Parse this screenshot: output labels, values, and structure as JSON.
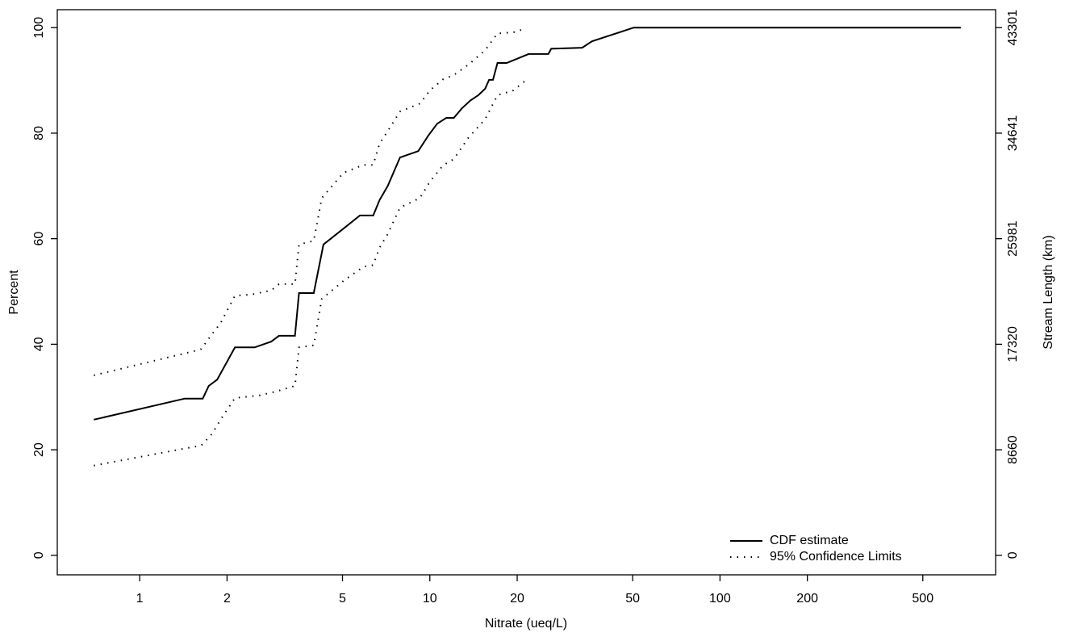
{
  "chart_data": {
    "type": "line",
    "xlabel": "Nitrate (ueq/L)",
    "ylabel": "Percent",
    "y2label": "Stream Length (km)",
    "xscale": "log",
    "xlim": [
      0.52,
      891
    ],
    "xticks": [
      1,
      2,
      5,
      10,
      20,
      50,
      100,
      200,
      500
    ],
    "ylim": [
      -3.7,
      103.4
    ],
    "yticks": [
      0,
      20,
      40,
      60,
      80,
      100
    ],
    "y2lim": [
      -1602,
      44773
    ],
    "y2ticks": [
      0,
      8660,
      17320,
      25981,
      34641,
      43301
    ],
    "legend": "bottom-right",
    "series": [
      {
        "name": "CDF estimate",
        "color": "#000000",
        "style": "solid",
        "x": [
          0.695,
          1.43,
          1.65,
          1.73,
          1.85,
          2.13,
          2.49,
          2.84,
          3.02,
          3.43,
          3.54,
          3.98,
          4.3,
          5.04,
          5.74,
          6.38,
          6.71,
          7.16,
          7.89,
          9.12,
          9.87,
          10.6,
          11.4,
          12.1,
          12.9,
          13.8,
          14.7,
          15.5,
          16.0,
          16.5,
          17.1,
          18.4,
          21.9,
          25.6,
          26.2,
          33.5,
          36.2,
          50.4,
          676
        ],
        "values": [
          25.7,
          29.7,
          29.7,
          32.1,
          33.3,
          39.4,
          39.4,
          40.5,
          41.6,
          41.6,
          49.7,
          49.7,
          58.9,
          61.9,
          64.4,
          64.4,
          67.3,
          70.0,
          75.4,
          76.6,
          79.5,
          81.8,
          82.9,
          82.9,
          84.7,
          86.2,
          87.2,
          88.4,
          90.1,
          90.1,
          93.3,
          93.3,
          95.0,
          95.0,
          96.0,
          96.2,
          97.4,
          100,
          100
        ]
      },
      {
        "name": "95% Confidence Limits",
        "color": "#000000",
        "style": "dotted",
        "x": [
          0.695,
          1.54,
          1.63,
          1.78,
          1.9,
          2.13,
          2.42,
          2.84,
          3.02,
          3.43,
          3.54,
          3.98,
          4.24,
          5.04,
          5.91,
          6.38,
          6.71,
          7.16,
          7.89,
          9.24,
          10.0,
          11.1,
          12.1,
          13.6,
          15.5,
          17.1,
          19.4,
          21.3
        ],
        "values": [
          34.1,
          38.7,
          39.1,
          42.0,
          44.0,
          49.2,
          49.4,
          50.2,
          51.4,
          51.4,
          58.9,
          59.6,
          67.7,
          72.5,
          74.0,
          74.0,
          78.0,
          80.4,
          84.1,
          85.6,
          88.1,
          90.2,
          91.0,
          93.0,
          95.7,
          98.9,
          99.1,
          99.8
        ]
      },
      {
        "color": "#000000",
        "style": "dotted",
        "x": [
          0.695,
          1.45,
          1.63,
          1.78,
          1.9,
          2.13,
          2.58,
          2.93,
          3.43,
          3.54,
          3.98,
          4.24,
          5.04,
          5.91,
          6.38,
          6.71,
          7.16,
          7.89,
          9.24,
          10.0,
          11.1,
          12.1,
          13.6,
          15.5,
          17.1,
          19.4,
          21.3
        ],
        "values": [
          17.0,
          20.3,
          20.8,
          23.1,
          25.7,
          29.8,
          30.3,
          31.0,
          32.1,
          39.4,
          39.8,
          48.6,
          52.0,
          54.7,
          55.0,
          58.3,
          60.9,
          65.9,
          67.7,
          70.8,
          73.9,
          75.1,
          79.2,
          82.6,
          87.2,
          88.1,
          89.9
        ]
      }
    ]
  }
}
